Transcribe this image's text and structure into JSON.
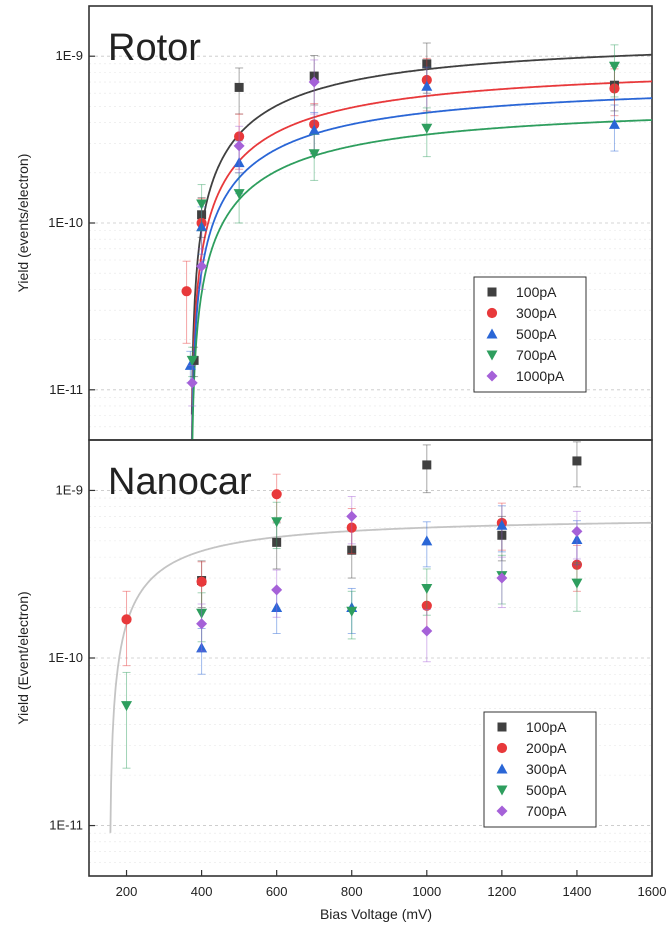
{
  "chart_data": [
    {
      "type": "scatter",
      "title": "Rotor",
      "ylabel": "Yield (events/electron)",
      "xlabel": "",
      "xlim": [
        100,
        1600
      ],
      "ylim": [
        5e-12,
        2e-09
      ],
      "yscale": "log",
      "yticks": [
        1e-11,
        1e-10,
        1e-09
      ],
      "ytick_labels": [
        "1E-11",
        "1E-10",
        "1E-9"
      ],
      "grid": true,
      "legend_position": "lower-right",
      "series": [
        {
          "name": "100pA",
          "color": "#404040",
          "marker": "square",
          "x": [
            380,
            400,
            500,
            700,
            1000,
            1500
          ],
          "y": [
            1.5e-11,
            1.12e-10,
            6.5e-10,
            7.6e-10,
            9e-10,
            6.7e-10
          ],
          "err": [
            3e-12,
            3e-11,
            2e-10,
            2.5e-10,
            3e-10,
            2e-10
          ],
          "fit": {
            "color": "#404040",
            "A": 1.33e-09,
            "V0": 372
          }
        },
        {
          "name": "300pA",
          "color": "#e8393b",
          "marker": "circle",
          "x": [
            360,
            400,
            500,
            700,
            1000,
            1500
          ],
          "y": [
            3.9e-11,
            1e-10,
            3.3e-10,
            3.9e-10,
            7.2e-10,
            6.4e-10
          ],
          "err": [
            2e-11,
            4e-11,
            1.2e-10,
            1.3e-10,
            2.5e-10,
            2e-10
          ],
          "fit": {
            "color": "#e8393b",
            "A": 9.2e-10,
            "V0": 372
          }
        },
        {
          "name": "500pA",
          "color": "#2a66d6",
          "marker": "triangle-up",
          "x": [
            370,
            400,
            500,
            700,
            1000,
            1500
          ],
          "y": [
            1.4e-11,
            9.5e-11,
            2.3e-10,
            3.6e-10,
            6.6e-10,
            3.9e-10
          ],
          "err": [
            3e-12,
            3e-11,
            8e-11,
            1e-10,
            2e-10,
            1.2e-10
          ],
          "fit": {
            "color": "#2a66d6",
            "A": 7.3e-10,
            "V0": 372
          }
        },
        {
          "name": "700pA",
          "color": "#2e9e5e",
          "marker": "triangle-down",
          "x": [
            375,
            400,
            500,
            700,
            1000,
            1500
          ],
          "y": [
            1.5e-11,
            1.3e-10,
            1.5e-10,
            2.6e-10,
            3.7e-10,
            8.7e-10
          ],
          "err": [
            3e-12,
            4e-11,
            5e-11,
            8e-11,
            1.2e-10,
            3e-10
          ],
          "fit": {
            "color": "#2e9e5e",
            "A": 5.4e-10,
            "V0": 372
          }
        },
        {
          "name": "1000pA",
          "color": "#a561d8",
          "marker": "diamond",
          "x": [
            375,
            400,
            500,
            700
          ],
          "y": [
            1.1e-11,
            5.5e-11,
            2.9e-10,
            7e-10
          ],
          "err": [
            3e-12,
            1.5e-11,
            9e-11,
            2.5e-10
          ]
        }
      ]
    },
    {
      "type": "scatter",
      "title": "Nanocar",
      "ylabel": "Yield (Event/electron)",
      "xlabel": "Bias Voltage (mV)",
      "xlim": [
        100,
        1600
      ],
      "ylim": [
        5e-12,
        2e-09
      ],
      "yscale": "log",
      "xticks": [
        200,
        400,
        600,
        800,
        1000,
        1200,
        1400,
        1600
      ],
      "yticks": [
        1e-11,
        1e-10,
        1e-09
      ],
      "ytick_labels": [
        "1E-11",
        "1E-10",
        "1E-9"
      ],
      "grid": true,
      "legend_position": "lower-right",
      "fit": {
        "color": "#c4c4c4",
        "A": 7.1e-10,
        "V0": 155
      },
      "series": [
        {
          "name": "100pA",
          "color": "#404040",
          "marker": "square",
          "x": [
            400,
            600,
            800,
            1000,
            1200,
            1400
          ],
          "y": [
            2.9e-10,
            4.9e-10,
            4.4e-10,
            1.42e-09,
            5.4e-10,
            1.5e-09
          ],
          "err": [
            9e-11,
            1.5e-10,
            1.4e-10,
            4.5e-10,
            1.6e-10,
            4.5e-10
          ]
        },
        {
          "name": "200pA",
          "color": "#e8393b",
          "marker": "circle",
          "x": [
            200,
            400,
            600,
            800,
            1000,
            1200,
            1400
          ],
          "y": [
            1.7e-10,
            2.85e-10,
            9.5e-10,
            6e-10,
            2.05e-10,
            6.4e-10,
            3.6e-10
          ],
          "err": [
            8e-11,
            9e-11,
            3e-10,
            1.8e-10,
            6e-11,
            2e-10,
            1.1e-10
          ]
        },
        {
          "name": "300pA",
          "color": "#2a66d6",
          "marker": "triangle-up",
          "x": [
            400,
            600,
            800,
            1000,
            1200,
            1400
          ],
          "y": [
            1.15e-10,
            2e-10,
            2e-10,
            5e-10,
            6.2e-10,
            5.1e-10
          ],
          "err": [
            3.5e-11,
            6e-11,
            6e-11,
            1.5e-10,
            1.9e-10,
            1.5e-10
          ]
        },
        {
          "name": "500pA",
          "color": "#2e9e5e",
          "marker": "triangle-down",
          "x": [
            200,
            400,
            600,
            800,
            1000,
            1200,
            1400
          ],
          "y": [
            5.2e-11,
            1.85e-10,
            6.5e-10,
            1.9e-10,
            2.6e-10,
            3.1e-10,
            2.8e-10
          ],
          "err": [
            3e-11,
            6e-11,
            2e-10,
            6e-11,
            8e-11,
            1e-10,
            9e-11
          ]
        },
        {
          "name": "700pA",
          "color": "#a561d8",
          "marker": "diamond",
          "x": [
            400,
            600,
            800,
            1000,
            1200,
            1400
          ],
          "y": [
            1.6e-10,
            2.55e-10,
            7e-10,
            1.45e-10,
            3e-10,
            5.7e-10
          ],
          "err": [
            5e-11,
            8e-11,
            2.2e-10,
            5e-11,
            1e-10,
            1.8e-10
          ]
        }
      ]
    }
  ]
}
